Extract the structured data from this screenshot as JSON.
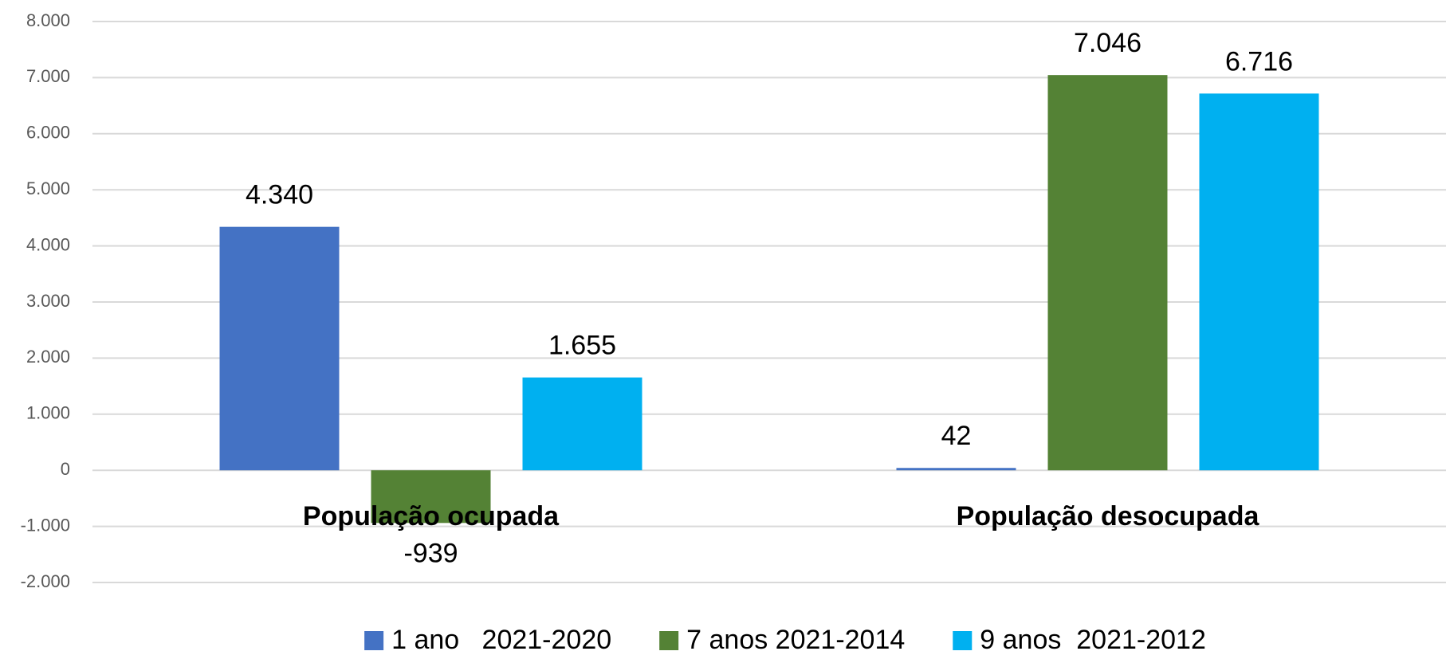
{
  "chart_data": {
    "type": "bar",
    "categories": [
      "População ocupada",
      "População desocupada"
    ],
    "series": [
      {
        "name": "1 ano   2021-2020",
        "color": "#4472c4",
        "values": [
          4340,
          42
        ],
        "value_labels": [
          "4.340",
          "42"
        ]
      },
      {
        "name": "7 anos 2021-2014",
        "color": "#548235",
        "values": [
          -939,
          7046
        ],
        "value_labels": [
          "-939",
          "7.046"
        ]
      },
      {
        "name": "9 anos  2021-2012",
        "color": "#00b0f0",
        "values": [
          1655,
          6716
        ],
        "value_labels": [
          "1.655",
          "6.716"
        ]
      }
    ],
    "ylim": [
      -2000,
      8000
    ],
    "yticks": [
      {
        "value": -2000,
        "label": "-2.000"
      },
      {
        "value": -1000,
        "label": "-1.000"
      },
      0,
      {
        "value": 1000,
        "label": "1.000"
      },
      {
        "value": 2000,
        "label": "2.000"
      },
      {
        "value": 3000,
        "label": "3.000"
      },
      {
        "value": 4000,
        "label": "4.000"
      },
      {
        "value": 5000,
        "label": "5.000"
      },
      {
        "value": 6000,
        "label": "6.000"
      },
      {
        "value": 7000,
        "label": "7.000"
      },
      {
        "value": 8000,
        "label": "8.000"
      }
    ],
    "grid": true,
    "legend": "bottom"
  }
}
